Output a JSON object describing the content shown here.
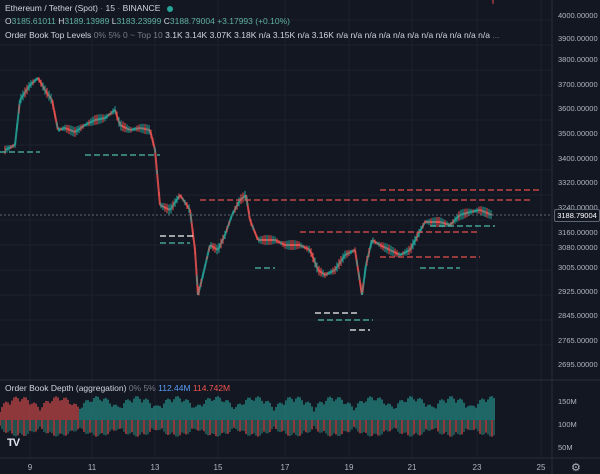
{
  "symbol": {
    "name": "Ethereum / Tether (Spot)",
    "interval": "15",
    "exchange": "BINANCE",
    "ohlc": {
      "open_label": "O",
      "open": "3185.61011",
      "high_label": "H",
      "high": "3189.13989",
      "low_label": "L",
      "low": "3183.23999",
      "close_label": "C",
      "close": "3188.79004",
      "change": "+3.17993 (+0.10%)"
    }
  },
  "indicator_top": {
    "name": "Order Book Top Levels",
    "params": "0% 5% 0 ~ Top 10",
    "values": [
      "3.1K",
      "3.14K",
      "3.07K",
      "3.18K",
      "n/a",
      "3.15K",
      "n/a",
      "3.16K",
      "n/a",
      "n/a",
      "n/a",
      "n/a",
      "n/a",
      "n/a",
      "n/a",
      "n/a",
      "n/a",
      "n/a",
      "n/a"
    ],
    "more": "..."
  },
  "indicator_bottom": {
    "name": "Order Book Depth (aggregation)",
    "params": "0% 5%",
    "value_1": "112.44M",
    "value_2": "114.742M"
  },
  "price_axis": [
    "4000.00000",
    "3900.00000",
    "3800.00000",
    "3700.00000",
    "3600.00000",
    "3500.00000",
    "3400.00000",
    "3320.00000",
    "3240.00000",
    "3160.00000",
    "3080.00000",
    "3005.00000",
    "2925.00000",
    "2845.00000",
    "2765.00000",
    "2695.00000"
  ],
  "current_price": "3188.79004",
  "volume_axis": [
    "150M",
    "100M",
    "50M"
  ],
  "date_axis": [
    "9",
    "11",
    "13",
    "15",
    "17",
    "19",
    "21",
    "23",
    "25"
  ],
  "colors": {
    "background": "#131722",
    "up": "#26a69a",
    "down": "#ef5350",
    "grid": "#1e2230",
    "accent": "#5b9cf6"
  },
  "icons": {
    "settings": "gear-icon",
    "logo": "tradingview-logo"
  }
}
